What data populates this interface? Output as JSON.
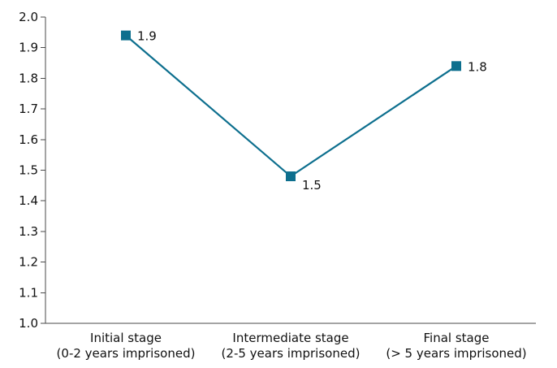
{
  "chart_data": {
    "type": "line",
    "title": "",
    "xlabel": "",
    "ylabel": "",
    "ylim": [
      1.0,
      2.0
    ],
    "yticks": [
      "1.0",
      "1.1",
      "1.2",
      "1.3",
      "1.4",
      "1.5",
      "1.6",
      "1.7",
      "1.8",
      "1.9",
      "2.0"
    ],
    "grid": false,
    "legend": "none",
    "categories": [
      [
        "Initial stage",
        "(0-2 years imprisoned)"
      ],
      [
        "Intermediate stage",
        "(2-5 years imprisoned)"
      ],
      [
        "Final stage",
        "(> 5 years imprisoned)"
      ]
    ],
    "series": [
      {
        "values": [
          1.94,
          1.48,
          1.84
        ],
        "data_labels": [
          "1.9",
          "1.5",
          "1.8"
        ],
        "color": "#0d6f8e",
        "marker": "square"
      }
    ]
  }
}
